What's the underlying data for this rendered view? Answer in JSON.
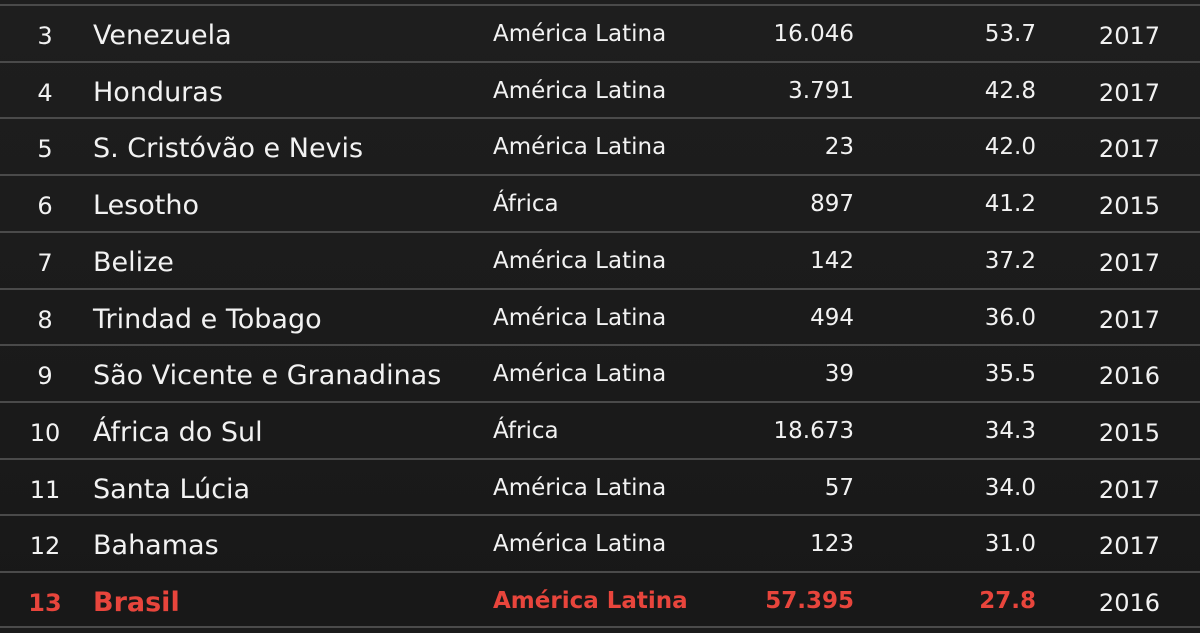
{
  "table": {
    "rows": [
      [
        "3",
        "Venezuela",
        "América Latina",
        "16.046",
        "53.7",
        "2017"
      ],
      [
        "4",
        "Honduras",
        "América Latina",
        "3.791",
        "42.8",
        "2017"
      ],
      [
        "5",
        "S. Cristóvão e Nevis",
        "América Latina",
        "23",
        "42.0",
        "2017"
      ],
      [
        "6",
        "Lesotho",
        "África",
        "897",
        "41.2",
        "2015"
      ],
      [
        "7",
        "Belize",
        "América Latina",
        "142",
        "37.2",
        "2017"
      ],
      [
        "8",
        "Trindad e Tobago",
        "América Latina",
        "494",
        "36.0",
        "2017"
      ],
      [
        "9",
        "São Vicente e Granadinas",
        "América Latina",
        "39",
        "35.5",
        "2016"
      ],
      [
        "10",
        "África do Sul",
        "África",
        "18.673",
        "34.3",
        "2015"
      ],
      [
        "11",
        "Santa Lúcia",
        "América Latina",
        "57",
        "34.0",
        "2017"
      ],
      [
        "12",
        "Bahamas",
        "América Latina",
        "123",
        "31.0",
        "2017"
      ],
      [
        "13",
        "Brasil",
        "América Latina",
        "57.395",
        "27.8",
        "2016"
      ]
    ]
  }
}
